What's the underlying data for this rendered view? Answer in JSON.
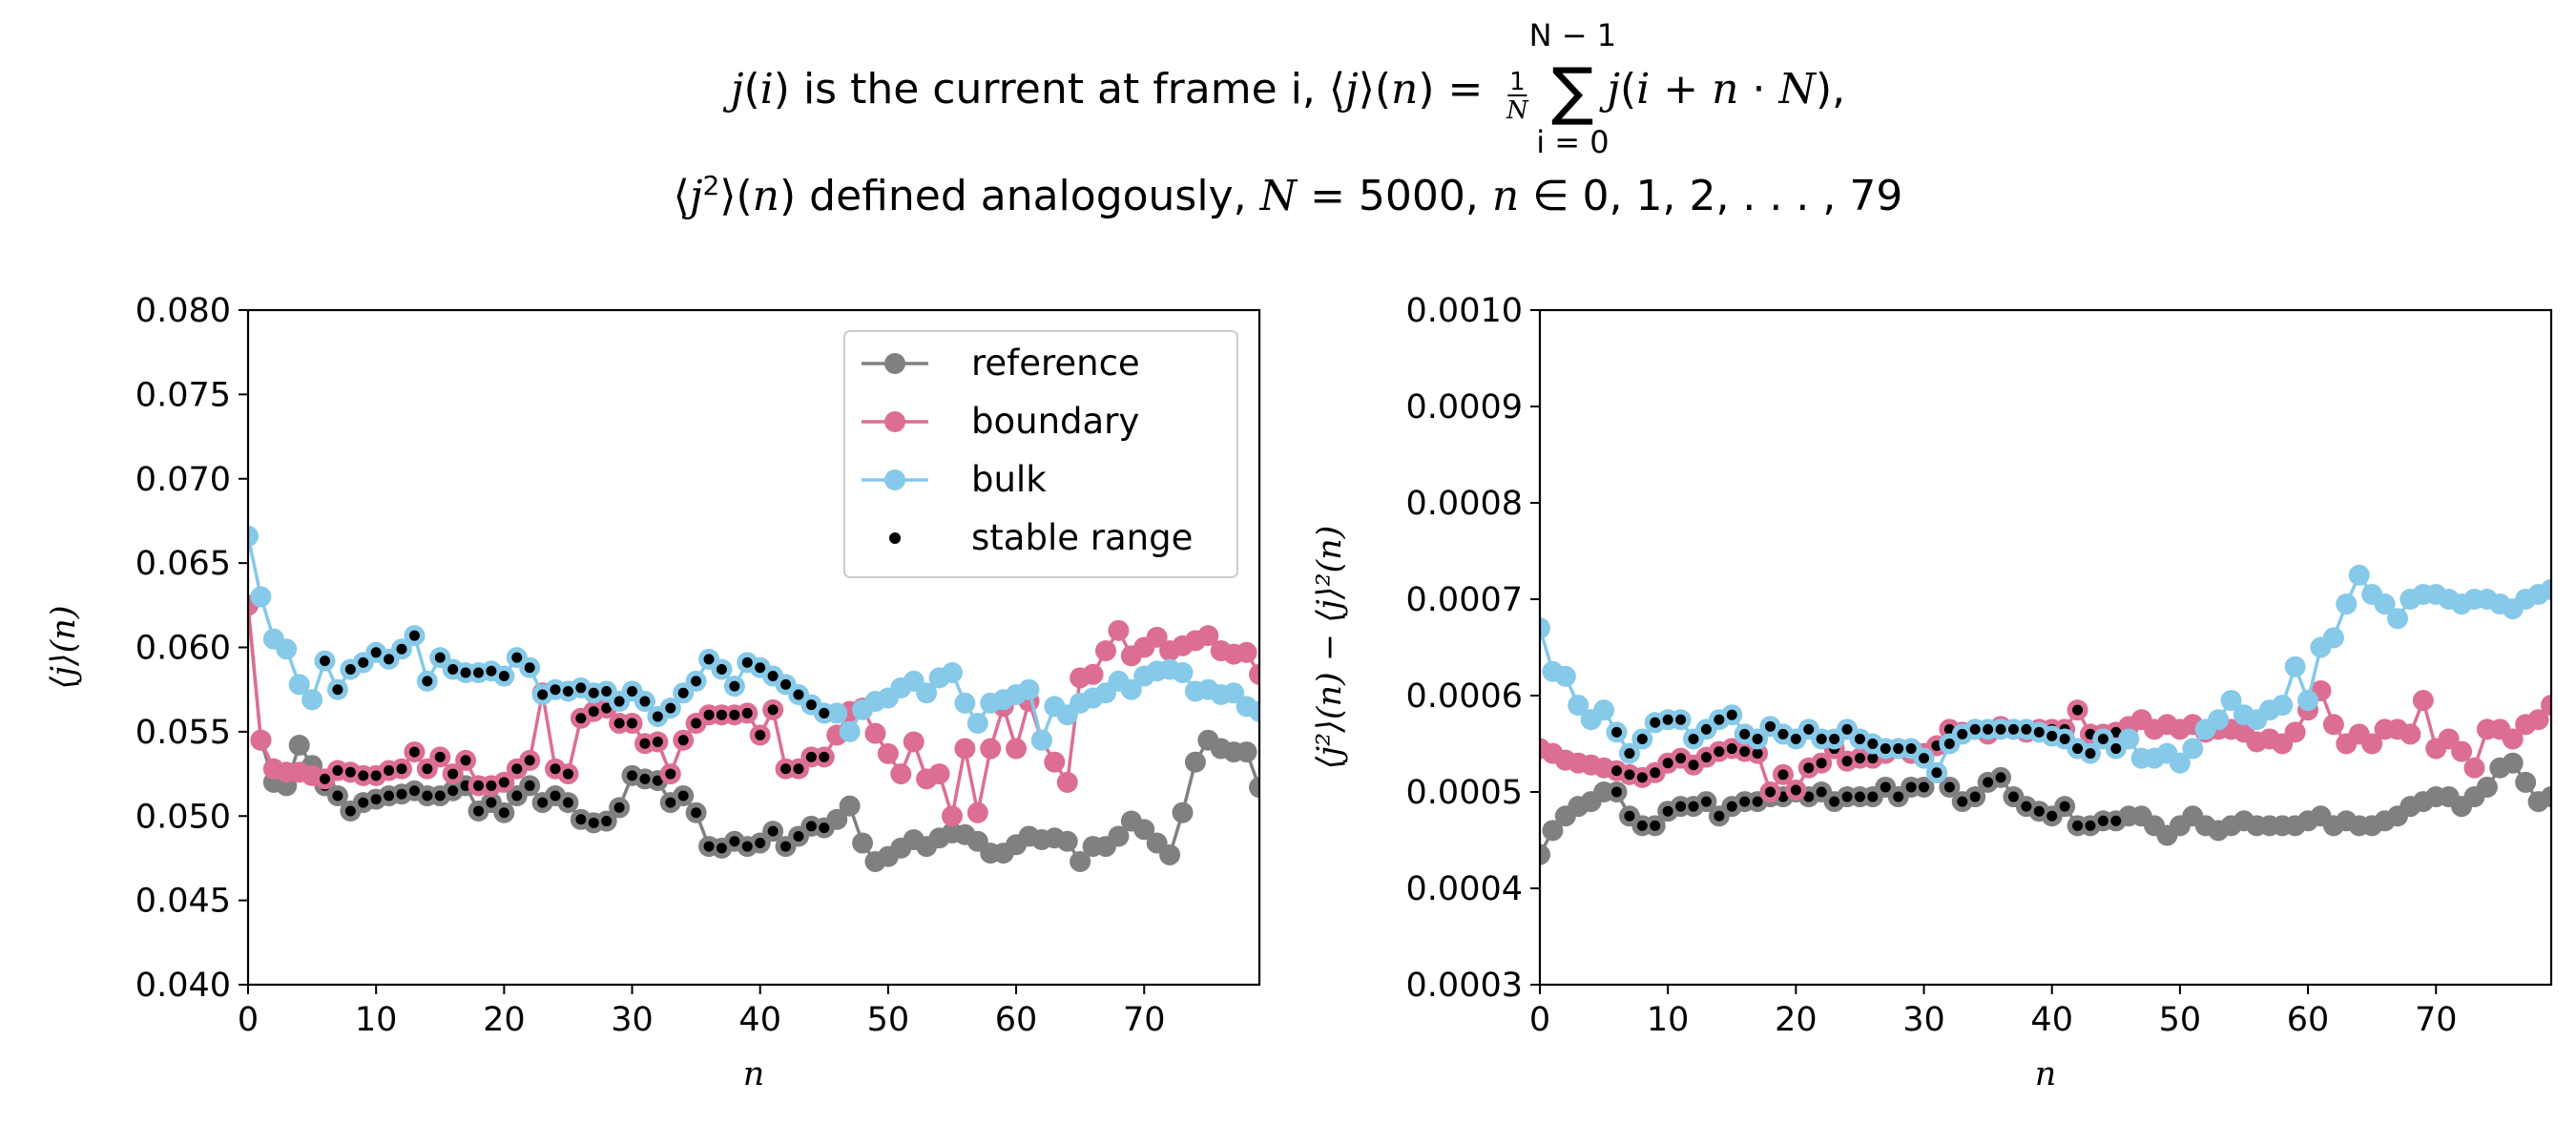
{
  "title": {
    "line1": [
      {
        "t": "j",
        "it": true
      },
      {
        "t": "("
      },
      {
        "t": "i",
        "it": true
      },
      {
        "t": ") is the current at frame i, ⟨"
      },
      {
        "t": "j",
        "it": true
      },
      {
        "t": "⟩("
      },
      {
        "t": "n",
        "it": true
      },
      {
        "t": ") = "
      },
      {
        "t": "FRAC"
      },
      {
        "t": " "
      },
      {
        "t": "SUM"
      },
      {
        "t": " "
      },
      {
        "t": "j",
        "it": true
      },
      {
        "t": "("
      },
      {
        "t": "i",
        "it": true
      },
      {
        "t": " + "
      },
      {
        "t": "n",
        "it": true
      },
      {
        "t": " · "
      },
      {
        "t": "N",
        "it": true
      },
      {
        "t": "),"
      }
    ],
    "line2": [
      {
        "t": "⟨"
      },
      {
        "t": "j",
        "it": true
      },
      {
        "t": "2",
        "sup": true
      },
      {
        "t": "⟩("
      },
      {
        "t": "n",
        "it": true
      },
      {
        "t": ") defined analogously, "
      },
      {
        "t": "N",
        "it": true
      },
      {
        "t": " = 5000, "
      },
      {
        "t": "n",
        "it": true
      },
      {
        "t": " ∈ 0, 1, 2, . . . , 79"
      }
    ],
    "frac_num": "1",
    "frac_den": "N",
    "sum_upper": "N − 1",
    "sum_lower": "i = 0",
    "sum_symbol": "∑"
  },
  "chart_data": [
    {
      "type": "line",
      "xlabel": "n",
      "ylabel": "⟨j⟩(n)",
      "xlim": [
        0,
        79
      ],
      "ylim": [
        0.04,
        0.08
      ],
      "xticks": [
        0,
        10,
        20,
        30,
        40,
        50,
        60,
        70
      ],
      "yticks": [
        0.04,
        0.045,
        0.05,
        0.055,
        0.06,
        0.065,
        0.07,
        0.075,
        0.08
      ],
      "ytick_labels": [
        "0.040",
        "0.045",
        "0.050",
        "0.055",
        "0.060",
        "0.065",
        "0.070",
        "0.075",
        "0.080"
      ],
      "grid": false,
      "legend": {
        "placement": "upper-right",
        "entries": [
          "reference",
          "boundary",
          "bulk",
          "stable range"
        ]
      },
      "stable_range": [
        6,
        45
      ],
      "stable_marker_color": "#000000",
      "series": [
        {
          "name": "reference",
          "color": "#808080",
          "values": [
            0.0625,
            0.0545,
            0.052,
            0.0518,
            0.0542,
            0.053,
            0.0518,
            0.0512,
            0.0503,
            0.0508,
            0.051,
            0.0512,
            0.0513,
            0.0515,
            0.0512,
            0.0512,
            0.0515,
            0.0518,
            0.0503,
            0.0508,
            0.0502,
            0.0512,
            0.0518,
            0.0508,
            0.0512,
            0.0508,
            0.0498,
            0.0496,
            0.0497,
            0.0505,
            0.0524,
            0.0522,
            0.0521,
            0.0508,
            0.0512,
            0.0502,
            0.0482,
            0.0481,
            0.0485,
            0.0482,
            0.0484,
            0.0491,
            0.0482,
            0.0488,
            0.0494,
            0.0493,
            0.0498,
            0.0506,
            0.0484,
            0.0473,
            0.0476,
            0.0481,
            0.0486,
            0.0482,
            0.0487,
            0.049,
            0.0489,
            0.0485,
            0.0478,
            0.0478,
            0.0483,
            0.0488,
            0.0486,
            0.0487,
            0.0485,
            0.0473,
            0.0482,
            0.0482,
            0.0488,
            0.0497,
            0.0492,
            0.0484,
            0.0477,
            0.0502,
            0.0532,
            0.0545,
            0.054,
            0.0538,
            0.0538,
            0.0517
          ]
        },
        {
          "name": "boundary",
          "color": "#DC6E94",
          "values": [
            0.0625,
            0.0545,
            0.0528,
            0.0526,
            0.0526,
            0.0524,
            0.0522,
            0.0527,
            0.0526,
            0.0524,
            0.0524,
            0.0527,
            0.0528,
            0.0538,
            0.0528,
            0.0535,
            0.0525,
            0.0533,
            0.0518,
            0.0518,
            0.052,
            0.0528,
            0.0533,
            0.0573,
            0.0528,
            0.0525,
            0.0558,
            0.0562,
            0.0564,
            0.0555,
            0.0555,
            0.0543,
            0.0544,
            0.0525,
            0.0545,
            0.0555,
            0.056,
            0.056,
            0.056,
            0.0561,
            0.0548,
            0.0563,
            0.0528,
            0.0528,
            0.0535,
            0.0535,
            0.0548,
            0.0562,
            0.0564,
            0.0549,
            0.0537,
            0.0525,
            0.0544,
            0.0522,
            0.0525,
            0.05,
            0.054,
            0.0502,
            0.054,
            0.0565,
            0.054,
            0.0568,
            0.0545,
            0.0532,
            0.052,
            0.0582,
            0.0584,
            0.0598,
            0.061,
            0.0595,
            0.06,
            0.0606,
            0.0598,
            0.0601,
            0.0604,
            0.0607,
            0.0598,
            0.0596,
            0.0597,
            0.0584
          ]
        },
        {
          "name": "bulk",
          "color": "#86C9E8",
          "values": [
            0.0666,
            0.063,
            0.0605,
            0.0599,
            0.0578,
            0.0569,
            0.0592,
            0.0575,
            0.0587,
            0.0591,
            0.0597,
            0.0593,
            0.0599,
            0.0607,
            0.058,
            0.0594,
            0.0587,
            0.0585,
            0.0585,
            0.0586,
            0.0583,
            0.0594,
            0.0588,
            0.0572,
            0.0575,
            0.0574,
            0.0576,
            0.0573,
            0.0574,
            0.0568,
            0.0574,
            0.0568,
            0.0559,
            0.0564,
            0.0573,
            0.058,
            0.0593,
            0.0587,
            0.0577,
            0.0591,
            0.0588,
            0.0583,
            0.0578,
            0.0572,
            0.0566,
            0.0561,
            0.0561,
            0.055,
            0.0563,
            0.0568,
            0.057,
            0.0576,
            0.058,
            0.0573,
            0.0582,
            0.0585,
            0.0567,
            0.0555,
            0.0567,
            0.0569,
            0.0572,
            0.0575,
            0.0545,
            0.0565,
            0.056,
            0.0567,
            0.057,
            0.0573,
            0.058,
            0.0575,
            0.0583,
            0.0586,
            0.0587,
            0.0585,
            0.0574,
            0.0575,
            0.0572,
            0.0573,
            0.0565,
            0.0562
          ]
        }
      ]
    },
    {
      "type": "line",
      "xlabel": "n",
      "ylabel": "⟨j²⟩(n) − ⟨j⟩²(n)",
      "xlim": [
        0,
        79
      ],
      "ylim": [
        0.0003,
        0.001
      ],
      "xticks": [
        0,
        10,
        20,
        30,
        40,
        50,
        60,
        70
      ],
      "yticks": [
        0.0003,
        0.0004,
        0.0005,
        0.0006,
        0.0007,
        0.0008,
        0.0009,
        0.001
      ],
      "ytick_labels": [
        "0.0003",
        "0.0004",
        "0.0005",
        "0.0006",
        "0.0007",
        "0.0008",
        "0.0009",
        "0.0010"
      ],
      "grid": false,
      "stable_range": [
        6,
        45
      ],
      "stable_marker_color": "#000000",
      "series": [
        {
          "name": "reference",
          "color": "#808080",
          "values": [
            0.000435,
            0.00046,
            0.000475,
            0.000485,
            0.00049,
            0.0005,
            0.0005,
            0.000475,
            0.000465,
            0.000465,
            0.00048,
            0.000485,
            0.000485,
            0.00049,
            0.000475,
            0.000485,
            0.00049,
            0.00049,
            0.000495,
            0.000495,
            0.0005,
            0.000495,
            0.0005,
            0.00049,
            0.000495,
            0.000495,
            0.000495,
            0.000505,
            0.000495,
            0.000505,
            0.000505,
            0.00052,
            0.000505,
            0.00049,
            0.000495,
            0.00051,
            0.000515,
            0.000495,
            0.000485,
            0.00048,
            0.000475,
            0.000485,
            0.000465,
            0.000465,
            0.00047,
            0.00047,
            0.000475,
            0.000475,
            0.000465,
            0.000455,
            0.000465,
            0.000475,
            0.000465,
            0.00046,
            0.000465,
            0.00047,
            0.000465,
            0.000465,
            0.000465,
            0.000465,
            0.00047,
            0.000475,
            0.000465,
            0.00047,
            0.000465,
            0.000465,
            0.00047,
            0.000475,
            0.000485,
            0.00049,
            0.000495,
            0.000495,
            0.000485,
            0.000495,
            0.000505,
            0.000525,
            0.00053,
            0.00051,
            0.00049,
            0.000495
          ]
        },
        {
          "name": "boundary",
          "color": "#DC6E94",
          "values": [
            0.000545,
            0.00054,
            0.000533,
            0.00053,
            0.000528,
            0.000525,
            0.000522,
            0.000518,
            0.000515,
            0.00052,
            0.00053,
            0.000535,
            0.000528,
            0.000536,
            0.000542,
            0.000545,
            0.000542,
            0.00054,
            0.0005,
            0.000518,
            0.000502,
            0.000525,
            0.00053,
            0.000545,
            0.000532,
            0.000535,
            0.000535,
            0.00054,
            0.000545,
            0.00054,
            0.00054,
            0.000548,
            0.000565,
            0.000562,
            0.000565,
            0.00056,
            0.000568,
            0.000565,
            0.000562,
            0.000565,
            0.000565,
            0.000565,
            0.000585,
            0.00056,
            0.00056,
            0.000562,
            0.000568,
            0.000575,
            0.000565,
            0.00057,
            0.000565,
            0.00057,
            0.000562,
            0.000565,
            0.000565,
            0.000562,
            0.000552,
            0.000555,
            0.00055,
            0.000562,
            0.000585,
            0.000605,
            0.00057,
            0.00055,
            0.00056,
            0.00055,
            0.000565,
            0.000565,
            0.00056,
            0.000595,
            0.000545,
            0.000555,
            0.000542,
            0.000525,
            0.000565,
            0.000565,
            0.000555,
            0.00057,
            0.000575,
            0.00059
          ]
        },
        {
          "name": "bulk",
          "color": "#86C9E8",
          "values": [
            0.00067,
            0.000625,
            0.00062,
            0.00059,
            0.000575,
            0.000585,
            0.000562,
            0.00054,
            0.000555,
            0.000572,
            0.000575,
            0.000575,
            0.000555,
            0.000565,
            0.000575,
            0.00058,
            0.00056,
            0.000555,
            0.000568,
            0.00056,
            0.000555,
            0.000565,
            0.000555,
            0.000555,
            0.000565,
            0.000555,
            0.00055,
            0.000545,
            0.000545,
            0.000545,
            0.000535,
            0.00052,
            0.00055,
            0.00056,
            0.000565,
            0.000565,
            0.000565,
            0.000565,
            0.000565,
            0.000562,
            0.000558,
            0.000555,
            0.000545,
            0.00054,
            0.000555,
            0.000545,
            0.000555,
            0.000535,
            0.000535,
            0.00054,
            0.00053,
            0.000545,
            0.000565,
            0.000575,
            0.000595,
            0.00058,
            0.000575,
            0.000585,
            0.00059,
            0.00063,
            0.000595,
            0.00065,
            0.00066,
            0.000695,
            0.000725,
            0.000705,
            0.000695,
            0.00068,
            0.0007,
            0.000705,
            0.000705,
            0.0007,
            0.000695,
            0.0007,
            0.0007,
            0.000695,
            0.00069,
            0.0007,
            0.000705,
            0.00071
          ]
        }
      ]
    }
  ]
}
